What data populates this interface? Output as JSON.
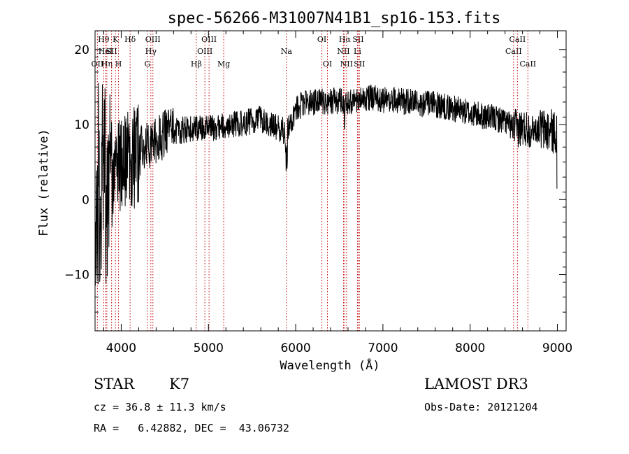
{
  "chart_data": {
    "type": "line",
    "title": "spec-56266-M31007N41B1_sp16-153.fits",
    "xlabel": "Wavelength (Å)",
    "ylabel": "Flux (relative)",
    "xlim": [
      3700,
      9100
    ],
    "ylim": [
      -17.5,
      22.5
    ],
    "xticks": [
      4000,
      5000,
      6000,
      7000,
      8000,
      9000
    ],
    "xtick_labels": [
      "4000",
      "5000",
      "6000",
      "7000",
      "8000",
      "9000"
    ],
    "yticks": [
      -10,
      0,
      10,
      20
    ],
    "ytick_labels": [
      "−10",
      "0",
      "10",
      "20"
    ],
    "continuum": [
      [
        3700,
        2
      ],
      [
        3850,
        3
      ],
      [
        4000,
        5
      ],
      [
        4200,
        6
      ],
      [
        4400,
        8
      ],
      [
        4600,
        9
      ],
      [
        4800,
        9.5
      ],
      [
        5000,
        9.5
      ],
      [
        5200,
        9.8
      ],
      [
        5400,
        10.2
      ],
      [
        5600,
        10.8
      ],
      [
        5800,
        9.5
      ],
      [
        5900,
        9
      ],
      [
        6000,
        12
      ],
      [
        6100,
        13
      ],
      [
        6300,
        13
      ],
      [
        6500,
        13.2
      ],
      [
        6700,
        13
      ],
      [
        6800,
        13.6
      ],
      [
        7000,
        13.3
      ],
      [
        7200,
        13.2
      ],
      [
        7500,
        12.8
      ],
      [
        7800,
        12.2
      ],
      [
        8000,
        11.5
      ],
      [
        8200,
        11
      ],
      [
        8400,
        10.5
      ],
      [
        8500,
        9.5
      ],
      [
        8700,
        9.5
      ],
      [
        9000,
        9
      ]
    ],
    "spectral_lines": [
      {
        "wave": 3727,
        "label": "OII",
        "row": 3
      },
      {
        "wave": 3798,
        "label": "Hθ",
        "row": 1
      },
      {
        "wave": 3820,
        "label": "HeI",
        "row": 2
      },
      {
        "wave": 3835,
        "label": "Hη",
        "row": 3
      },
      {
        "wave": 3889,
        "label": "SII",
        "row": 2
      },
      {
        "wave": 3934,
        "label": "K",
        "row": 1
      },
      {
        "wave": 3969,
        "label": "H",
        "row": 3
      },
      {
        "wave": 4102,
        "label": "Hδ",
        "row": 1
      },
      {
        "wave": 4300,
        "label": "G",
        "row": 3
      },
      {
        "wave": 4340,
        "label": "Hγ",
        "row": 2
      },
      {
        "wave": 4363,
        "label": "OIII",
        "row": 1
      },
      {
        "wave": 4861,
        "label": "Hβ",
        "row": 3
      },
      {
        "wave": 4959,
        "label": "OIII",
        "row": 2
      },
      {
        "wave": 5007,
        "label": "OIII",
        "row": 1
      },
      {
        "wave": 5175,
        "label": "Mg",
        "row": 3
      },
      {
        "wave": 5894,
        "label": "Na",
        "row": 2
      },
      {
        "wave": 6300,
        "label": "OI",
        "row": 1
      },
      {
        "wave": 6364,
        "label": "OI",
        "row": 3
      },
      {
        "wave": 6548,
        "label": "NII",
        "row": 2
      },
      {
        "wave": 6563,
        "label": "Hα",
        "row": 1
      },
      {
        "wave": 6583,
        "label": "NII",
        "row": 3
      },
      {
        "wave": 6708,
        "label": "Li",
        "row": 2
      },
      {
        "wave": 6716,
        "label": "SII",
        "row": 1
      },
      {
        "wave": 6731,
        "label": "SII",
        "row": 3
      },
      {
        "wave": 8498,
        "label": "CaII",
        "row": 2
      },
      {
        "wave": 8542,
        "label": "CaII",
        "row": 1
      },
      {
        "wave": 8662,
        "label": "CaII",
        "row": 3
      }
    ]
  },
  "info": {
    "object_class": "STAR",
    "subclass": "K7",
    "survey": "LAMOST DR3",
    "redshift_line": "cz = 36.8 ± 11.3 km/s",
    "obs_date_line": "Obs-Date: 20121204",
    "coords_line": "RA =   6.42882, DEC =  43.06732"
  },
  "colors": {
    "spectrum": "#000000",
    "line_markers": "#c00000",
    "background": "#ffffff"
  }
}
